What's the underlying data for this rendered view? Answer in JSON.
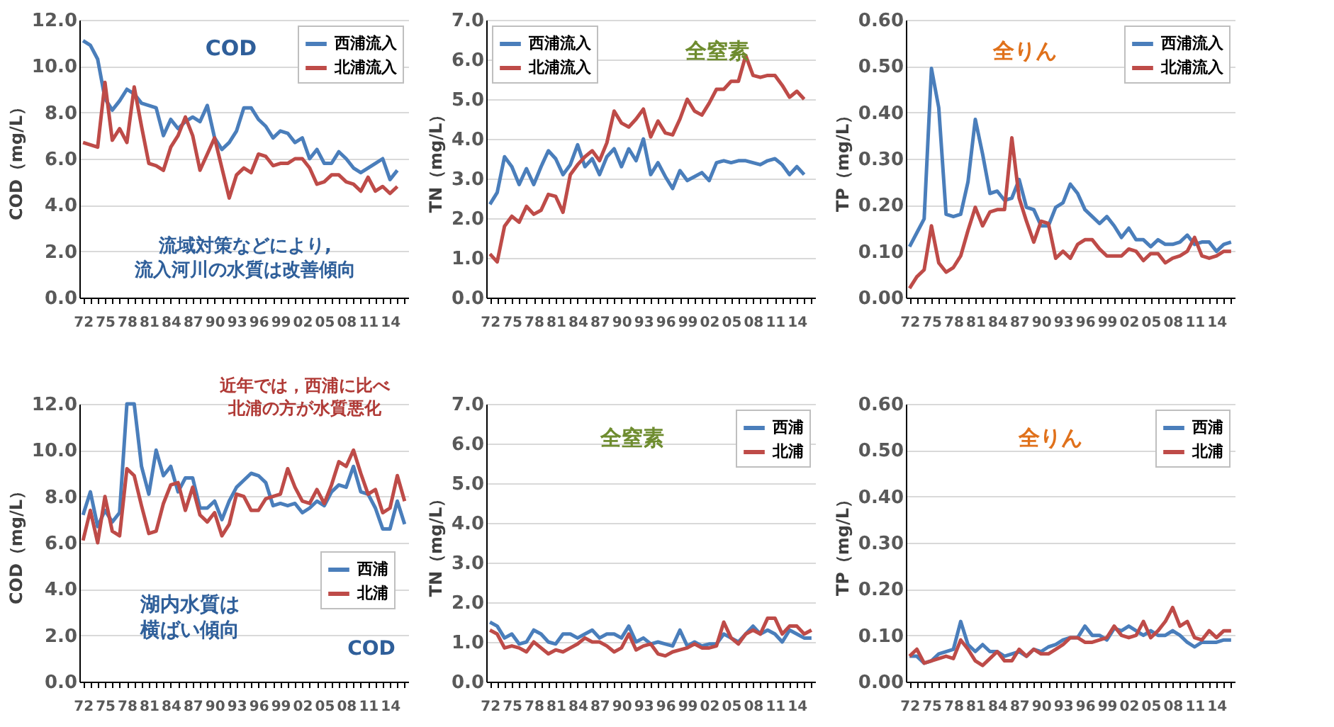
{
  "chart_data": [
    {
      "type": "line",
      "ylabel": "COD（mg/L）",
      "categories": [
        "72",
        null,
        null,
        "75",
        null,
        null,
        "78",
        null,
        null,
        "81",
        null,
        null,
        "84",
        null,
        null,
        "87",
        null,
        null,
        "90",
        null,
        null,
        "93",
        null,
        null,
        "96",
        null,
        null,
        "99",
        null,
        null,
        "02",
        null,
        null,
        "05",
        null,
        null,
        "08",
        null,
        null,
        "11",
        null,
        null,
        "14",
        null,
        null
      ],
      "ylim": [
        0,
        12
      ],
      "yticks": [
        {
          "value": 0,
          "label": "0.0"
        },
        {
          "value": 2,
          "label": "2.0"
        },
        {
          "value": 4,
          "label": "4.0"
        },
        {
          "value": 6,
          "label": "6.0"
        },
        {
          "value": 8,
          "label": "8.0"
        },
        {
          "value": 10,
          "label": "10.0"
        },
        {
          "value": 12,
          "label": "12.0"
        }
      ],
      "grid": "y",
      "legend": "top right",
      "line_style": "solid",
      "marker": "none",
      "annotations": [
        "COD",
        "流域対策などにより,流入河川の水質は改善傾向"
      ],
      "series": [
        {
          "name": "西浦流入",
          "color": "#4a7ebb",
          "values": [
            11.1,
            10.9,
            10.3,
            8.6,
            8.1,
            8.5,
            9.0,
            8.8,
            8.4,
            8.3,
            8.2,
            7.0,
            7.7,
            7.3,
            7.6,
            7.8,
            7.6,
            8.3,
            6.9,
            6.4,
            6.7,
            7.2,
            8.2,
            8.2,
            7.7,
            7.4,
            6.9,
            7.2,
            7.1,
            6.7,
            6.9,
            6.0,
            6.4,
            5.8,
            5.8,
            6.3,
            6.0,
            5.6,
            5.4,
            5.6,
            5.8,
            6.0,
            5.1,
            5.5,
            null
          ]
        },
        {
          "name": "北浦流入",
          "color": "#be4b48",
          "values": [
            6.7,
            6.6,
            6.5,
            9.3,
            6.8,
            7.3,
            6.7,
            9.1,
            7.4,
            5.8,
            5.7,
            5.5,
            6.5,
            7.0,
            7.8,
            7.0,
            5.5,
            6.2,
            6.9,
            5.6,
            4.3,
            5.3,
            5.6,
            5.4,
            6.2,
            6.1,
            5.7,
            5.8,
            5.8,
            6.0,
            6.0,
            5.6,
            4.9,
            5.0,
            5.3,
            5.3,
            5.0,
            4.9,
            4.6,
            5.2,
            4.6,
            4.8,
            4.5,
            4.8,
            null
          ]
        }
      ]
    },
    {
      "type": "line",
      "ylabel": "TN（mg/L）",
      "categories": [
        "72",
        null,
        null,
        "75",
        null,
        null,
        "78",
        null,
        null,
        "81",
        null,
        null,
        "84",
        null,
        null,
        "87",
        null,
        null,
        "90",
        null,
        null,
        "93",
        null,
        null,
        "96",
        null,
        null,
        "99",
        null,
        null,
        "02",
        null,
        null,
        "05",
        null,
        null,
        "08",
        null,
        null,
        "11",
        null,
        null,
        "14",
        null,
        null
      ],
      "ylim": [
        0,
        7
      ],
      "yticks": [
        {
          "value": 0,
          "label": "0.0"
        },
        {
          "value": 1,
          "label": "1.0"
        },
        {
          "value": 2,
          "label": "2.0"
        },
        {
          "value": 3,
          "label": "3.0"
        },
        {
          "value": 4,
          "label": "4.0"
        },
        {
          "value": 5,
          "label": "5.0"
        },
        {
          "value": 6,
          "label": "6.0"
        },
        {
          "value": 7,
          "label": "7.0"
        }
      ],
      "grid": "y",
      "legend": "top left",
      "line_style": "solid",
      "marker": "none",
      "annotations": [
        "全窒素"
      ],
      "series": [
        {
          "name": "西浦流入",
          "color": "#4a7ebb",
          "values": [
            2.35,
            2.65,
            3.55,
            3.3,
            2.85,
            3.25,
            2.85,
            3.3,
            3.7,
            3.5,
            3.1,
            3.35,
            3.85,
            3.3,
            3.5,
            3.1,
            3.55,
            3.75,
            3.3,
            3.75,
            3.45,
            4.0,
            3.1,
            3.4,
            3.05,
            2.75,
            3.2,
            2.95,
            3.05,
            3.15,
            2.95,
            3.4,
            3.45,
            3.4,
            3.45,
            3.45,
            3.4,
            3.35,
            3.45,
            3.5,
            3.35,
            3.1,
            3.3,
            3.1,
            null
          ]
        },
        {
          "name": "北浦流入",
          "color": "#be4b48",
          "values": [
            1.1,
            0.9,
            1.8,
            2.05,
            1.9,
            2.3,
            2.1,
            2.2,
            2.6,
            2.55,
            2.15,
            3.1,
            3.35,
            3.55,
            3.7,
            3.45,
            3.9,
            4.7,
            4.4,
            4.3,
            4.5,
            4.75,
            4.05,
            4.45,
            4.15,
            4.1,
            4.5,
            5.0,
            4.7,
            4.6,
            4.9,
            5.25,
            5.25,
            5.45,
            5.45,
            6.1,
            5.6,
            5.55,
            5.6,
            5.6,
            5.35,
            5.05,
            5.2,
            5.0,
            null
          ]
        }
      ]
    },
    {
      "type": "line",
      "ylabel": "TP（mg/L）",
      "categories": [
        "72",
        null,
        null,
        "75",
        null,
        null,
        "78",
        null,
        null,
        "81",
        null,
        null,
        "84",
        null,
        null,
        "87",
        null,
        null,
        "90",
        null,
        null,
        "93",
        null,
        null,
        "96",
        null,
        null,
        "99",
        null,
        null,
        "02",
        null,
        null,
        "05",
        null,
        null,
        "08",
        null,
        null,
        "11",
        null,
        null,
        "14",
        null,
        null
      ],
      "ylim": [
        0,
        0.6
      ],
      "yticks": [
        {
          "value": 0,
          "label": "0.00"
        },
        {
          "value": 0.1,
          "label": "0.10"
        },
        {
          "value": 0.2,
          "label": "0.20"
        },
        {
          "value": 0.3,
          "label": "0.30"
        },
        {
          "value": 0.4,
          "label": "0.40"
        },
        {
          "value": 0.5,
          "label": "0.50"
        },
        {
          "value": 0.6,
          "label": "0.60"
        }
      ],
      "grid": "y",
      "legend": "top right",
      "line_style": "solid",
      "marker": "none",
      "annotations": [
        "全りん"
      ],
      "series": [
        {
          "name": "西浦流入",
          "color": "#4a7ebb",
          "values": [
            0.11,
            0.14,
            0.17,
            0.495,
            0.41,
            0.18,
            0.175,
            0.18,
            0.25,
            0.385,
            0.31,
            0.225,
            0.23,
            0.21,
            0.215,
            0.255,
            0.195,
            0.19,
            0.155,
            0.155,
            0.195,
            0.205,
            0.245,
            0.225,
            0.19,
            0.175,
            0.16,
            0.175,
            0.155,
            0.13,
            0.15,
            0.125,
            0.125,
            0.11,
            0.125,
            0.115,
            0.115,
            0.12,
            0.135,
            0.115,
            0.12,
            0.12,
            0.1,
            0.115,
            0.12
          ]
        },
        {
          "name": "北浦流入",
          "color": "#be4b48",
          "values": [
            0.02,
            0.045,
            0.06,
            0.155,
            0.075,
            0.055,
            0.065,
            0.09,
            0.145,
            0.195,
            0.155,
            0.185,
            0.19,
            0.19,
            0.345,
            0.215,
            0.165,
            0.12,
            0.165,
            0.16,
            0.085,
            0.1,
            0.085,
            0.115,
            0.125,
            0.125,
            0.105,
            0.09,
            0.09,
            0.09,
            0.105,
            0.1,
            0.08,
            0.095,
            0.095,
            0.075,
            0.085,
            0.09,
            0.1,
            0.13,
            0.09,
            0.085,
            0.09,
            0.1,
            0.1
          ]
        }
      ]
    },
    {
      "type": "line",
      "ylabel": "COD（mg/L）",
      "categories": [
        "72",
        null,
        null,
        "75",
        null,
        null,
        "78",
        null,
        null,
        "81",
        null,
        null,
        "84",
        null,
        null,
        "87",
        null,
        null,
        "90",
        null,
        null,
        "93",
        null,
        null,
        "96",
        null,
        null,
        "99",
        null,
        null,
        "02",
        null,
        null,
        "05",
        null,
        null,
        "08",
        null,
        null,
        "11",
        null,
        null,
        "14",
        null,
        null
      ],
      "ylim": [
        0,
        12
      ],
      "yticks": [
        {
          "value": 0,
          "label": "0.0"
        },
        {
          "value": 2,
          "label": "2.0"
        },
        {
          "value": 4,
          "label": "4.0"
        },
        {
          "value": 6,
          "label": "6.0"
        },
        {
          "value": 8,
          "label": "8.0"
        },
        {
          "value": 10,
          "label": "10.0"
        },
        {
          "value": 12,
          "label": "12.0"
        }
      ],
      "grid": "y",
      "legend": "right",
      "line_style": "solid",
      "marker": "none",
      "annotations": [
        "近年では，西浦に比べ北浦の方が水質悪化",
        "湖内水質は横ばい傾向",
        "COD"
      ],
      "series": [
        {
          "name": "西浦",
          "color": "#4a7ebb",
          "values": [
            7.2,
            8.2,
            6.7,
            7.4,
            6.9,
            7.3,
            12.0,
            12.0,
            9.3,
            8.1,
            10.0,
            8.9,
            9.3,
            8.2,
            8.8,
            8.8,
            7.5,
            7.5,
            7.8,
            7.0,
            7.8,
            8.4,
            8.7,
            9.0,
            8.9,
            8.6,
            7.6,
            7.7,
            7.6,
            7.7,
            7.3,
            7.5,
            7.8,
            7.6,
            8.2,
            8.5,
            8.4,
            9.3,
            8.2,
            8.1,
            7.5,
            6.6,
            6.6,
            7.8,
            6.8
          ]
        },
        {
          "name": "北浦",
          "color": "#be4b48",
          "values": [
            6.1,
            7.4,
            6.0,
            8.0,
            6.5,
            6.3,
            9.2,
            8.9,
            7.6,
            6.4,
            6.5,
            7.7,
            8.5,
            8.6,
            7.4,
            8.4,
            7.2,
            6.9,
            7.3,
            6.3,
            6.8,
            8.1,
            8.0,
            7.4,
            7.4,
            7.9,
            8.0,
            8.1,
            9.2,
            8.4,
            7.8,
            7.7,
            8.3,
            7.7,
            8.5,
            9.5,
            9.3,
            10.0,
            9.0,
            8.1,
            8.3,
            7.3,
            7.5,
            8.9,
            7.8
          ]
        }
      ]
    },
    {
      "type": "line",
      "ylabel": "TN（mg/L）",
      "categories": [
        "72",
        null,
        null,
        "75",
        null,
        null,
        "78",
        null,
        null,
        "81",
        null,
        null,
        "84",
        null,
        null,
        "87",
        null,
        null,
        "90",
        null,
        null,
        "93",
        null,
        null,
        "96",
        null,
        null,
        "99",
        null,
        null,
        "02",
        null,
        null,
        "05",
        null,
        null,
        "08",
        null,
        null,
        "11",
        null,
        null,
        "14",
        null,
        null
      ],
      "ylim": [
        0,
        7
      ],
      "yticks": [
        {
          "value": 0,
          "label": "0.0"
        },
        {
          "value": 1,
          "label": "1.0"
        },
        {
          "value": 2,
          "label": "2.0"
        },
        {
          "value": 3,
          "label": "3.0"
        },
        {
          "value": 4,
          "label": "4.0"
        },
        {
          "value": 5,
          "label": "5.0"
        },
        {
          "value": 6,
          "label": "6.0"
        },
        {
          "value": 7,
          "label": "7.0"
        }
      ],
      "grid": "y",
      "legend": "top right",
      "line_style": "solid",
      "marker": "none",
      "annotations": [
        "全窒素"
      ],
      "series": [
        {
          "name": "西浦",
          "color": "#4a7ebb",
          "values": [
            1.5,
            1.4,
            1.1,
            1.2,
            0.95,
            1.0,
            1.3,
            1.2,
            1.0,
            0.95,
            1.2,
            1.2,
            1.1,
            1.2,
            1.3,
            1.1,
            1.2,
            1.2,
            1.1,
            1.4,
            1.0,
            1.1,
            0.95,
            1.0,
            0.95,
            0.9,
            1.3,
            0.9,
            1.0,
            0.9,
            0.95,
            0.95,
            1.2,
            1.1,
            1.0,
            1.2,
            1.4,
            1.2,
            1.3,
            1.2,
            1.0,
            1.3,
            1.2,
            1.1,
            1.1
          ]
        },
        {
          "name": "北浦",
          "color": "#be4b48",
          "values": [
            1.3,
            1.2,
            0.85,
            0.9,
            0.85,
            0.75,
            1.0,
            0.85,
            0.7,
            0.8,
            0.75,
            0.85,
            0.95,
            1.1,
            1.0,
            1.0,
            0.9,
            0.75,
            0.85,
            1.2,
            0.8,
            0.9,
            0.95,
            0.7,
            0.65,
            0.75,
            0.8,
            0.85,
            0.95,
            0.85,
            0.85,
            0.9,
            1.5,
            1.1,
            0.95,
            1.2,
            1.3,
            1.2,
            1.6,
            1.6,
            1.2,
            1.4,
            1.4,
            1.2,
            1.3
          ]
        }
      ]
    },
    {
      "type": "line",
      "ylabel": "TP（mg/L）",
      "categories": [
        "72",
        null,
        null,
        "75",
        null,
        null,
        "78",
        null,
        null,
        "81",
        null,
        null,
        "84",
        null,
        null,
        "87",
        null,
        null,
        "90",
        null,
        null,
        "93",
        null,
        null,
        "96",
        null,
        null,
        "99",
        null,
        null,
        "02",
        null,
        null,
        "05",
        null,
        null,
        "08",
        null,
        null,
        "11",
        null,
        null,
        "14",
        null,
        null
      ],
      "ylim": [
        0,
        0.6
      ],
      "yticks": [
        {
          "value": 0,
          "label": "0.00"
        },
        {
          "value": 0.1,
          "label": "0.10"
        },
        {
          "value": 0.2,
          "label": "0.20"
        },
        {
          "value": 0.3,
          "label": "0.30"
        },
        {
          "value": 0.4,
          "label": "0.40"
        },
        {
          "value": 0.5,
          "label": "0.50"
        },
        {
          "value": 0.6,
          "label": "0.60"
        }
      ],
      "grid": "y",
      "legend": "top right",
      "line_style": "solid",
      "marker": "none",
      "annotations": [
        "全りん"
      ],
      "series": [
        {
          "name": "西浦",
          "color": "#4a7ebb",
          "values": [
            0.055,
            0.055,
            0.04,
            0.045,
            0.06,
            0.065,
            0.07,
            0.13,
            0.08,
            0.065,
            0.08,
            0.065,
            0.065,
            0.055,
            0.06,
            0.065,
            0.055,
            0.07,
            0.065,
            0.075,
            0.08,
            0.09,
            0.095,
            0.095,
            0.12,
            0.1,
            0.1,
            0.09,
            0.115,
            0.11,
            0.12,
            0.11,
            0.1,
            0.11,
            0.1,
            0.1,
            0.11,
            0.1,
            0.085,
            0.075,
            0.085,
            0.085,
            0.085,
            0.09,
            0.09
          ]
        },
        {
          "name": "北浦",
          "color": "#be4b48",
          "values": [
            0.055,
            0.07,
            0.04,
            0.045,
            0.05,
            0.055,
            0.05,
            0.09,
            0.07,
            0.045,
            0.035,
            0.05,
            0.065,
            0.045,
            0.045,
            0.07,
            0.055,
            0.07,
            0.06,
            0.06,
            0.07,
            0.08,
            0.095,
            0.095,
            0.085,
            0.085,
            0.09,
            0.095,
            0.12,
            0.1,
            0.095,
            0.1,
            0.13,
            0.095,
            0.11,
            0.13,
            0.16,
            0.12,
            0.13,
            0.095,
            0.09,
            0.11,
            0.095,
            0.11,
            0.11
          ]
        }
      ]
    }
  ]
}
